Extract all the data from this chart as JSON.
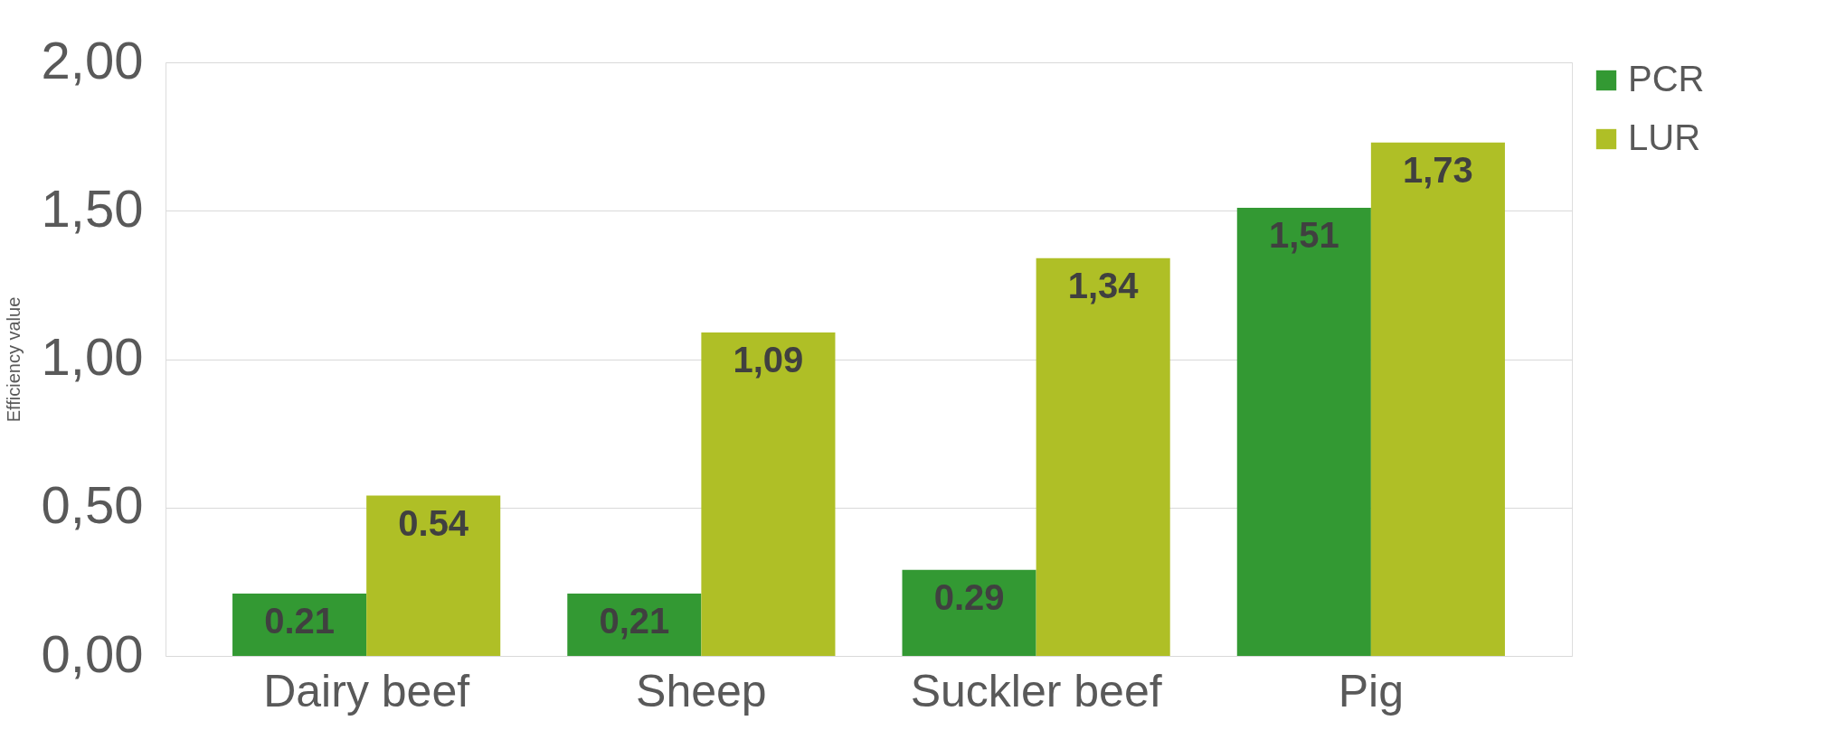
{
  "chart_data": {
    "type": "bar",
    "ylabel": "Efficiency value",
    "categories": [
      "Dairy beef",
      "Sheep",
      "Suckler beef",
      "Pig"
    ],
    "series": [
      {
        "name": "PCR",
        "color": "#339933",
        "values": [
          0.21,
          0.21,
          0.29,
          1.51
        ],
        "value_labels": [
          "0.21",
          "0,21",
          "0.29",
          "1,51"
        ]
      },
      {
        "name": "LUR",
        "color": "#afbf26",
        "values": [
          0.54,
          1.09,
          1.34,
          1.73
        ],
        "value_labels": [
          "0.54",
          "1,09",
          "1,34",
          "1,73"
        ]
      }
    ],
    "ylim": [
      0,
      2
    ],
    "yticks": [
      {
        "value": 0,
        "label": "0,00"
      },
      {
        "value": 0.5,
        "label": "0,50"
      },
      {
        "value": 1,
        "label": "1,00"
      },
      {
        "value": 1.5,
        "label": "1,50"
      },
      {
        "value": 2,
        "label": "2,00"
      }
    ],
    "grid": "y",
    "legend": "right"
  }
}
